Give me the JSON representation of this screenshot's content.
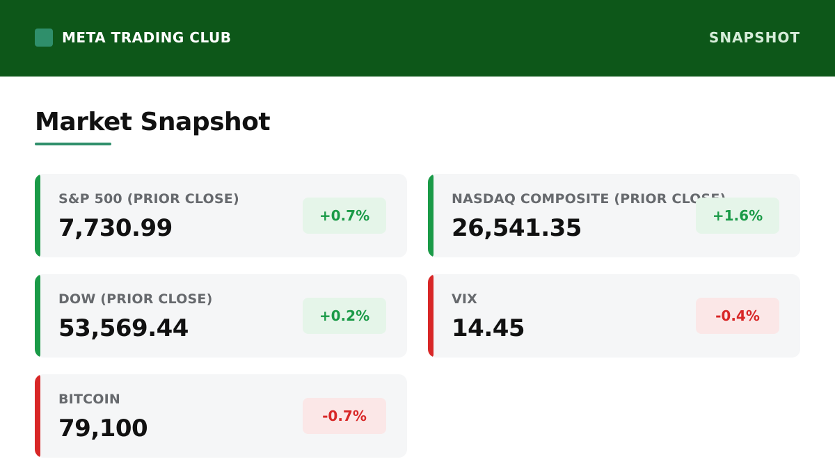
{
  "header": {
    "brand": "META TRADING CLUB",
    "nav_link": "SNAPSHOT"
  },
  "page": {
    "title": "Market Snapshot"
  },
  "colors": {
    "header_bg": "#0d5719",
    "accent": "#2f8f6b",
    "up": "#1a9a47",
    "up_bg": "#e5f5e9",
    "down": "#d82727",
    "down_bg": "#fbe7e7"
  },
  "cards": [
    {
      "label": "S&P 500 (PRIOR CLOSE)",
      "value": "7,730.99",
      "change": "+0.7%",
      "direction": "up"
    },
    {
      "label": "NASDAQ COMPOSITE (PRIOR CLOSE)",
      "value": "26,541.35",
      "change": "+1.6%",
      "direction": "up"
    },
    {
      "label": "DOW (PRIOR CLOSE)",
      "value": "53,569.44",
      "change": "+0.2%",
      "direction": "up"
    },
    {
      "label": "VIX",
      "value": "14.45",
      "change": "-0.4%",
      "direction": "down"
    },
    {
      "label": "BITCOIN",
      "value": "79,100",
      "change": "-0.7%",
      "direction": "down"
    }
  ]
}
